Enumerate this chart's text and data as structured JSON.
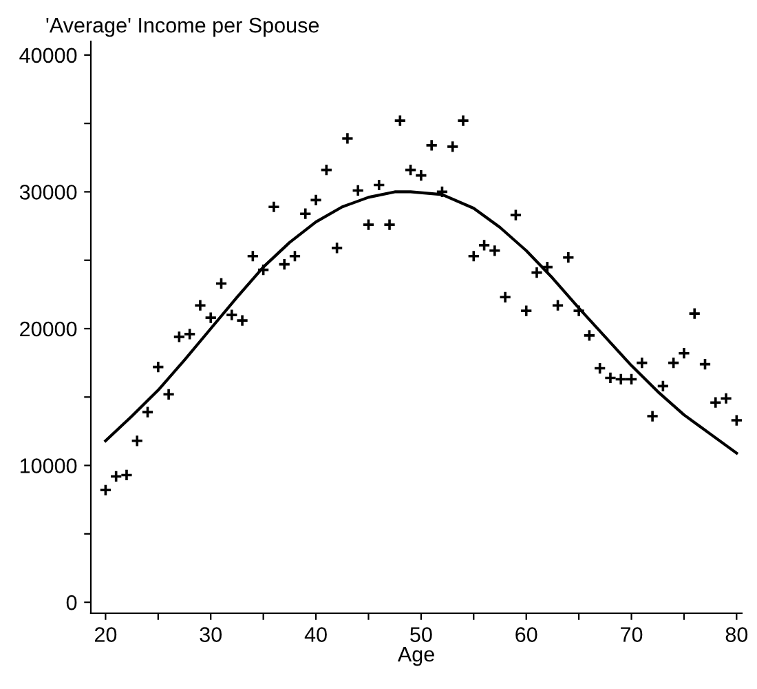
{
  "chart_data": {
    "type": "scatter",
    "title": "'Average' Income per Spouse",
    "xlabel": "Age",
    "xlim": [
      18.6,
      80.5
    ],
    "xticks": [
      20,
      {
        "value": 25,
        "label": null
      },
      30,
      {
        "value": 35,
        "label": null
      },
      40,
      {
        "value": 45,
        "label": null
      },
      50,
      {
        "value": 55,
        "label": null
      },
      60,
      {
        "value": 65,
        "label": null
      },
      70,
      {
        "value": 75,
        "label": null
      },
      80
    ],
    "ylim": [
      -800,
      41000
    ],
    "yticks": [
      0,
      {
        "value": 5000,
        "label": null
      },
      10000,
      {
        "value": 15000,
        "label": null
      },
      20000,
      {
        "value": 25000,
        "label": null
      },
      30000,
      {
        "value": 35000,
        "label": null
      },
      40000
    ],
    "grid": false,
    "legend": false,
    "series": [
      {
        "marker": "cross",
        "color": "#000000",
        "x": [
          20,
          21,
          22,
          23,
          24,
          25,
          26,
          27,
          28,
          29,
          30,
          31,
          32,
          33,
          34,
          35,
          36,
          37,
          38,
          39,
          40,
          41,
          42,
          43,
          44,
          45,
          46,
          47,
          48,
          49,
          50,
          51,
          52,
          53,
          54,
          55,
          56,
          57,
          58,
          59,
          60,
          61,
          62,
          63,
          64,
          65,
          66,
          67,
          68,
          69,
          70,
          71,
          72,
          73,
          74,
          75,
          76,
          77,
          78,
          79,
          80
        ],
        "values": [
          8200,
          9200,
          9300,
          11800,
          13900,
          17200,
          15200,
          19400,
          19600,
          21700,
          20800,
          23300,
          21000,
          20600,
          25300,
          24300,
          28900,
          24700,
          25300,
          28400,
          29400,
          31600,
          25900,
          33900,
          30100,
          27600,
          30500,
          27600,
          35200,
          31600,
          31200,
          33400,
          30000,
          33300,
          35200,
          25300,
          26100,
          25700,
          22300,
          28300,
          21300,
          24100,
          24500,
          21700,
          25200,
          21300,
          19500,
          17100,
          16400,
          16300,
          16300,
          17500,
          13600,
          15800,
          17500,
          18200,
          21100,
          17400,
          14600,
          14900,
          13300
        ]
      },
      {
        "type": "line",
        "marker": "none",
        "color": "#000000",
        "x": [
          20,
          22.5,
          25,
          27.5,
          30,
          32.5,
          35,
          37.5,
          40,
          42.5,
          45,
          47.5,
          49,
          52,
          55,
          57.5,
          60,
          62.5,
          65,
          67.5,
          70,
          72.5,
          75,
          77.5,
          80
        ],
        "values": [
          11800,
          13600,
          15500,
          17700,
          20000,
          22300,
          24500,
          26300,
          27800,
          28900,
          29600,
          30000,
          30000,
          29800,
          28800,
          27400,
          25700,
          23700,
          21500,
          19400,
          17300,
          15400,
          13700,
          12300,
          10900
        ]
      }
    ]
  }
}
